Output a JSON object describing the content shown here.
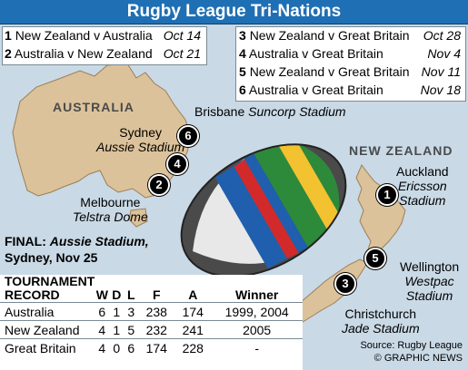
{
  "title": "Rugby League Tri-Nations",
  "fixtures": [
    {
      "num": "1",
      "match": "New Zealand v Australia",
      "date": "Oct 14"
    },
    {
      "num": "2",
      "match": "Australia v New Zealand",
      "date": "Oct 21"
    },
    {
      "num": "3",
      "match": "New Zealand v Great Britain",
      "date": "Oct 28"
    },
    {
      "num": "4",
      "match": "Australia v Great Britain",
      "date": "Nov 4"
    },
    {
      "num": "5",
      "match": "New Zealand v Great Britain",
      "date": "Nov 11"
    },
    {
      "num": "6",
      "match": "Australia v Great Britain",
      "date": "Nov 18"
    }
  ],
  "map": {
    "country_australia": "AUSTRALIA",
    "country_new_zealand": "NEW ZEALAND",
    "venues": {
      "brisbane": {
        "city": "Brisbane",
        "stadium": "Suncorp Stadium"
      },
      "sydney": {
        "city": "Sydney",
        "stadium": "Aussie Stadium"
      },
      "melbourne": {
        "city": "Melbourne",
        "stadium": "Telstra Dome"
      },
      "auckland": {
        "city": "Auckland",
        "stadium_line1": "Ericsson",
        "stadium_line2": "Stadium"
      },
      "wellington": {
        "city": "Wellington",
        "stadium_line1": "Westpac",
        "stadium_line2": "Stadium"
      },
      "christchurch": {
        "city": "Christchurch",
        "stadium": "Jade Stadium"
      }
    },
    "markers": [
      "1",
      "2",
      "3",
      "4",
      "5",
      "6"
    ]
  },
  "final": {
    "label": "FINAL:",
    "venue": "Aussie Stadium,",
    "detail": "Sydney, Nov 25"
  },
  "record": {
    "title_line1": "TOURNAMENT",
    "title_line2": "RECORD",
    "columns": [
      "W",
      "D",
      "L",
      "F",
      "A",
      "Winner"
    ],
    "rows": [
      {
        "team": "Australia",
        "w": "6",
        "d": "1",
        "l": "3",
        "f": "238",
        "a": "174",
        "winner": "1999, 2004"
      },
      {
        "team": "New Zealand",
        "w": "4",
        "d": "1",
        "l": "5",
        "f": "232",
        "a": "241",
        "winner": "2005"
      },
      {
        "team": "Great Britain",
        "w": "4",
        "d": "0",
        "l": "6",
        "f": "174",
        "a": "228",
        "winner": "-"
      }
    ]
  },
  "footer": {
    "source": "Source: Rugby League",
    "credit": "© GRAPHIC NEWS"
  },
  "colors": {
    "title_bar": "#1f6fb4",
    "sea": "#c9d9e6",
    "land": "#dcc29a",
    "marker": "#000000"
  }
}
